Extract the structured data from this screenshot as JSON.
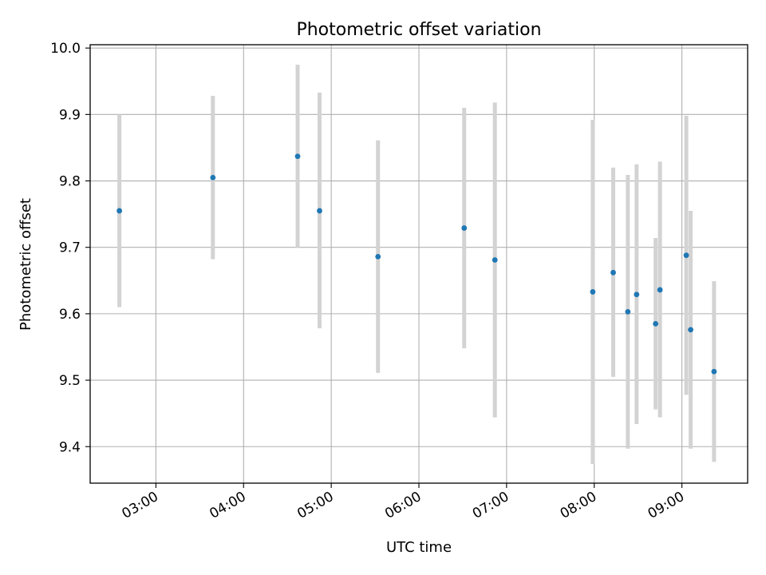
{
  "chart_data": {
    "type": "scatter",
    "title": "Photometric offset variation",
    "xlabel": "UTC time",
    "ylabel": "Photometric offset",
    "xlim": [
      "02:15",
      "09:45"
    ],
    "ylim": [
      9.345,
      10.005
    ],
    "x_ticks": [
      "03:00",
      "04:00",
      "05:00",
      "06:00",
      "07:00",
      "08:00",
      "09:00"
    ],
    "y_ticks": [
      "9.4",
      "9.5",
      "9.6",
      "9.7",
      "9.8",
      "9.9",
      "10.0"
    ],
    "grid": true,
    "marker_color": "#1f77b4",
    "errorbar_color": "#d3d3d3",
    "points": [
      {
        "x": "02:35",
        "y": 9.755,
        "low": 9.61,
        "high": 9.9
      },
      {
        "x": "03:39",
        "y": 9.805,
        "low": 9.682,
        "high": 9.928
      },
      {
        "x": "04:37",
        "y": 9.837,
        "low": 9.7,
        "high": 9.975
      },
      {
        "x": "04:52",
        "y": 9.755,
        "low": 9.578,
        "high": 9.933
      },
      {
        "x": "05:32",
        "y": 9.686,
        "low": 9.511,
        "high": 9.861
      },
      {
        "x": "06:31",
        "y": 9.729,
        "low": 9.548,
        "high": 9.91
      },
      {
        "x": "06:52",
        "y": 9.681,
        "low": 9.444,
        "high": 9.918
      },
      {
        "x": "07:59",
        "y": 9.633,
        "low": 9.374,
        "high": 9.892
      },
      {
        "x": "08:13",
        "y": 9.662,
        "low": 9.505,
        "high": 9.82
      },
      {
        "x": "08:23",
        "y": 9.603,
        "low": 9.397,
        "high": 9.809
      },
      {
        "x": "08:29",
        "y": 9.629,
        "low": 9.434,
        "high": 9.825
      },
      {
        "x": "08:42",
        "y": 9.585,
        "low": 9.456,
        "high": 9.714
      },
      {
        "x": "08:45",
        "y": 9.636,
        "low": 9.444,
        "high": 9.829
      },
      {
        "x": "09:03",
        "y": 9.688,
        "low": 9.478,
        "high": 9.898
      },
      {
        "x": "09:06",
        "y": 9.576,
        "low": 9.397,
        "high": 9.755
      },
      {
        "x": "09:22",
        "y": 9.513,
        "low": 9.377,
        "high": 9.649
      }
    ]
  }
}
